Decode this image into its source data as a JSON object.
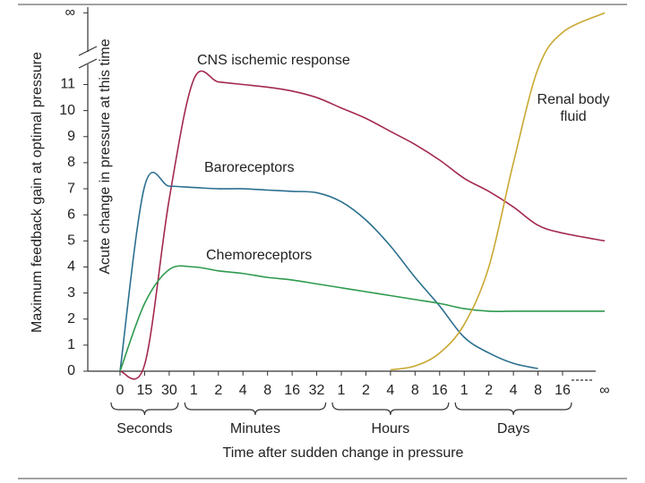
{
  "chart_data": {
    "type": "line",
    "ylabel": "Maximum feedback gain at optimal pressure",
    "ylabel2": "Acute change in pressure at this time",
    "xlabel": "Time after sudden change in pressure",
    "categories": [
      "0",
      "15",
      "30",
      "1",
      "2",
      "4",
      "8",
      "16",
      "32",
      "1",
      "2",
      "4",
      "8",
      "16",
      "1",
      "2",
      "4",
      "8",
      "16",
      "∞"
    ],
    "groups": [
      "Seconds",
      "Minutes",
      "Hours",
      "Days"
    ],
    "ylim": [
      0,
      13.9
    ],
    "yticks": [
      0,
      1,
      2,
      3,
      4,
      5,
      6,
      7,
      8,
      9,
      10,
      11,
      {
        "value": 13.75,
        "label": "∞"
      }
    ],
    "series": [
      {
        "name": "CNS ischemic response",
        "color": "#a3294d",
        "values": [
          0,
          0.25,
          6.6,
          11.2,
          11.1,
          11.0,
          10.9,
          10.75,
          10.5,
          10.1,
          9.7,
          9.2,
          8.7,
          8.1,
          7.4,
          6.9,
          6.3,
          5.6,
          5.3,
          5.0
        ]
      },
      {
        "name": "Baroreceptors",
        "color": "#2b6f8f",
        "values": [
          0,
          7.1,
          7.1,
          7.05,
          7.0,
          7.0,
          6.95,
          6.9,
          6.85,
          6.5,
          5.8,
          4.8,
          3.6,
          2.5,
          1.3,
          0.7,
          0.3,
          0.1,
          null,
          null
        ]
      },
      {
        "name": "Chemoreceptors",
        "color": "#2e9a4e",
        "values": [
          0,
          2.6,
          3.9,
          4.0,
          3.85,
          3.75,
          3.6,
          3.5,
          3.35,
          3.2,
          3.05,
          2.9,
          2.75,
          2.6,
          2.4,
          2.3,
          2.3,
          2.3,
          2.3,
          2.3
        ]
      },
      {
        "name": "Renal body fluid",
        "color": "#c9a832",
        "values": [
          null,
          null,
          null,
          null,
          null,
          null,
          null,
          null,
          null,
          null,
          null,
          0.05,
          0.2,
          0.7,
          1.8,
          4.0,
          8.0,
          11.6,
          13.0,
          13.75
        ]
      }
    ]
  }
}
